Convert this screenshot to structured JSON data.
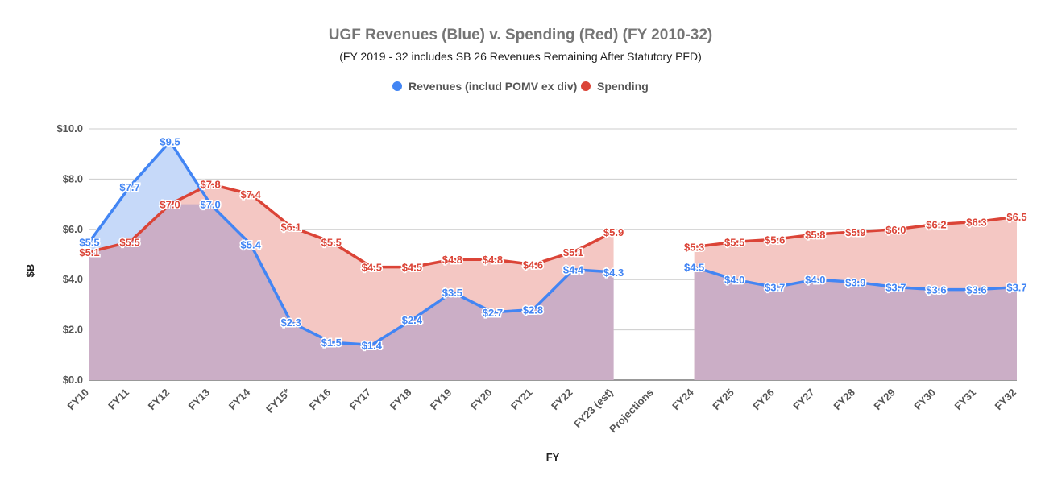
{
  "chart_data": {
    "type": "area",
    "title": "UGF Revenues (Blue) v. Spending (Red) (FY 2010-32)",
    "subtitle": "(FY 2019 - 32 includes SB 26 Revenues Remaining After Statutory PFD)",
    "xlabel": "FY",
    "ylabel": "$B",
    "ylim": [
      0,
      10
    ],
    "yticks": [
      "$0.0",
      "$2.0",
      "$4.0",
      "$6.0",
      "$8.0",
      "$10.0"
    ],
    "ytick_values": [
      0,
      2,
      4,
      6,
      8,
      10
    ],
    "grid": true,
    "legend_position": "top",
    "categories": [
      "FY10",
      "FY11",
      "FY12",
      "FY13",
      "FY14",
      "FY15*",
      "FY16",
      "FY17",
      "FY18",
      "FY19",
      "FY20",
      "FY21",
      "FY22",
      "FY23 (est)",
      "Projections",
      "FY24",
      "FY25",
      "FY26",
      "FY27",
      "FY28",
      "FY29",
      "FY30",
      "FY31",
      "FY32"
    ],
    "series": [
      {
        "name": "Revenues (includ POMV ex div)",
        "color": "#4285f4",
        "fill": "#c6d9f9",
        "values": [
          5.5,
          7.7,
          9.5,
          7.0,
          5.4,
          2.3,
          1.5,
          1.4,
          2.4,
          3.5,
          2.7,
          2.8,
          4.4,
          4.3,
          null,
          4.5,
          4.0,
          3.7,
          4.0,
          3.9,
          3.7,
          3.6,
          3.6,
          3.7
        ],
        "labels": [
          "$5.5",
          "$7.7",
          "$9.5",
          "$7.0",
          "$5.4",
          "$2.3",
          "$1.5",
          "$1.4",
          "$2.4",
          "$3.5",
          "$2.7",
          "$2.8",
          "$4.4",
          "$4.3",
          "",
          "$4.5",
          "$4.0",
          "$3.7",
          "$4.0",
          "$3.9",
          "$3.7",
          "$3.6",
          "$3.6",
          "$3.7"
        ]
      },
      {
        "name": "Spending",
        "color": "#db4437",
        "fill": "#f4c7c3",
        "values": [
          5.1,
          5.5,
          7.0,
          7.8,
          7.4,
          6.1,
          5.5,
          4.5,
          4.5,
          4.8,
          4.8,
          4.6,
          5.1,
          5.9,
          null,
          5.3,
          5.5,
          5.6,
          5.8,
          5.9,
          6.0,
          6.2,
          6.3,
          6.5
        ],
        "labels": [
          "$5.1",
          "$5.5",
          "$7.0",
          "$7.8",
          "$7.4",
          "$6.1",
          "$5.5",
          "$4.5",
          "$4.5",
          "$4.8",
          "$4.8",
          "$4.6",
          "$5.1",
          "$5.9",
          "",
          "$5.3",
          "$5.5",
          "$5.6",
          "$5.8",
          "$5.9",
          "$6.0",
          "$6.2",
          "$6.3",
          "$6.5"
        ]
      }
    ],
    "overlap_fill": "#cbaec6"
  }
}
